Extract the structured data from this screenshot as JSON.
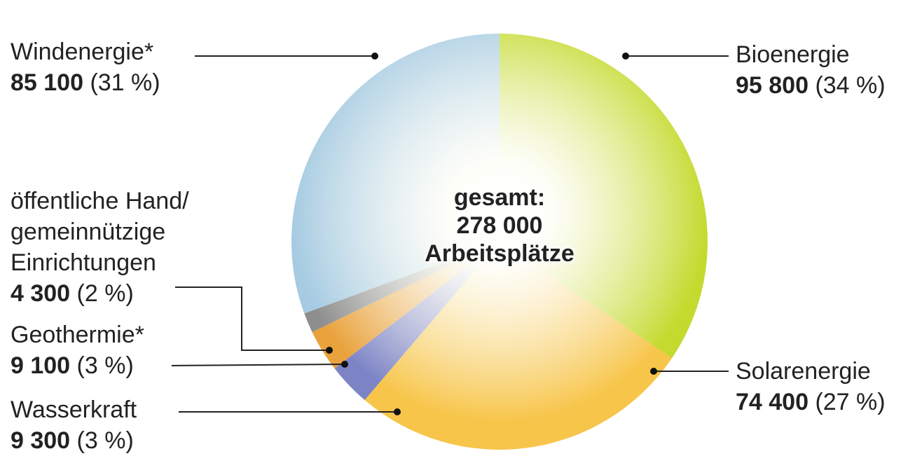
{
  "chart_data": {
    "type": "pie",
    "categories": [
      "Bioenergie",
      "Solarenergie",
      "Wasserkraft",
      "Geothermie*",
      "öffentliche Hand/\ngemeinnützige\nEinrichtungen",
      "Windenergie*"
    ],
    "values": [
      95800,
      74400,
      9300,
      9100,
      4300,
      85100
    ],
    "value_labels": [
      "95 800",
      "74 400",
      "9 300",
      "9 100",
      "4 300",
      "85 100"
    ],
    "percentages": [
      34,
      27,
      3,
      3,
      2,
      31
    ],
    "percentage_labels": [
      "(34 %)",
      "(27 %)",
      "(3 %)",
      "(3 %)",
      "(2 %)",
      "(31 %)"
    ],
    "colors": [
      "#c4da2e",
      "#f7c54a",
      "#7d84c6",
      "#e9a23c",
      "#8e8e8e",
      "#a6cbe2"
    ],
    "center_text": {
      "heading": "gesamt:",
      "total": 278000,
      "total_label": "278 000",
      "unit": "Arbeitsplätze"
    }
  }
}
